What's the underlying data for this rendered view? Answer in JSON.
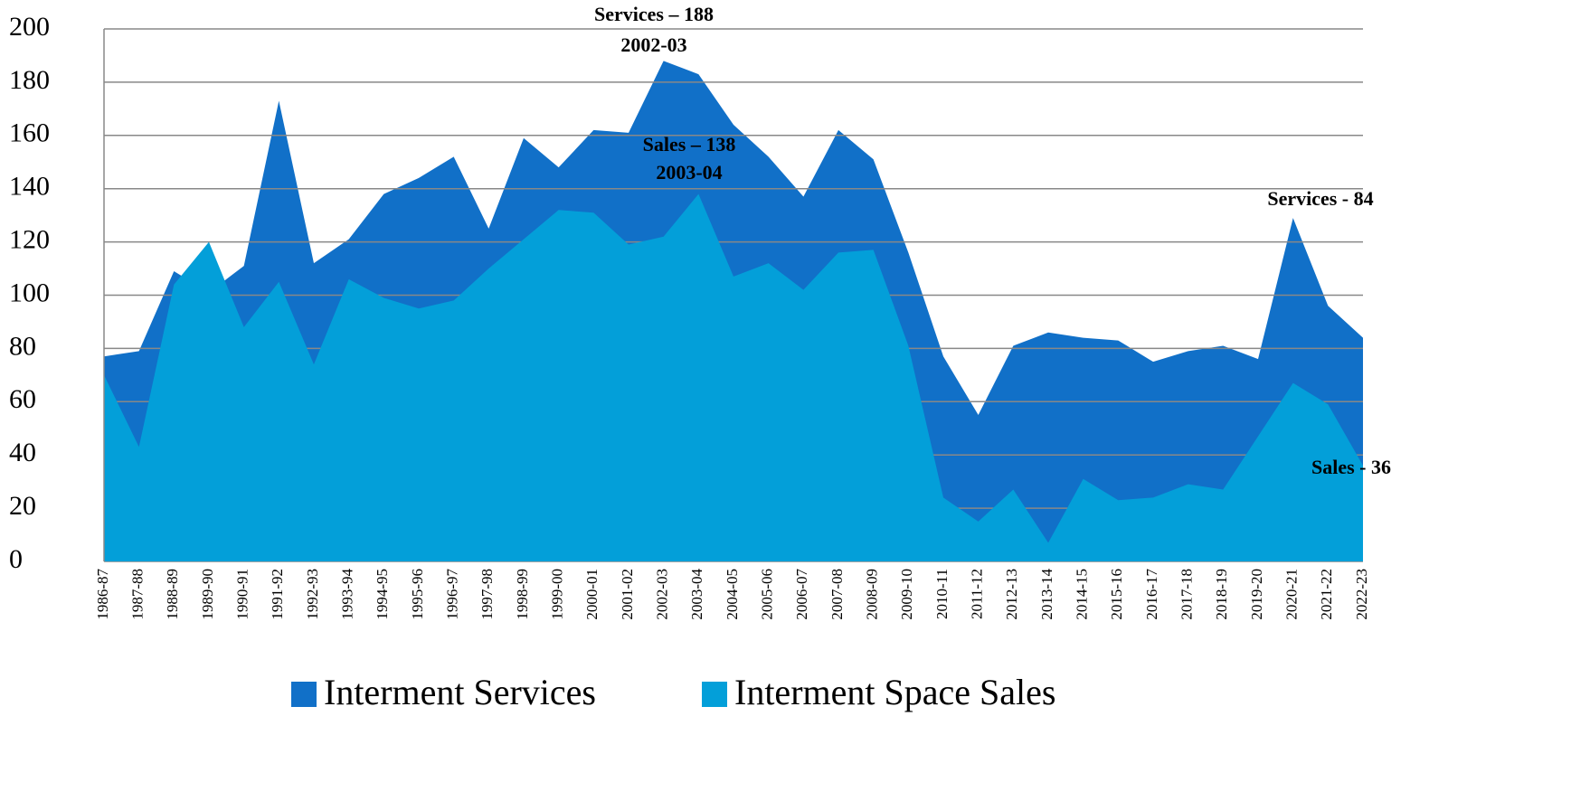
{
  "chart_data": {
    "type": "area",
    "categories": [
      "1986-87",
      "1987-88",
      "1988-89",
      "1989-90",
      "1990-91",
      "1991-92",
      "1992-93",
      "1993-94",
      "1994-95",
      "1995-96",
      "1996-97",
      "1997-98",
      "1998-99",
      "1999-00",
      "2000-01",
      "2001-02",
      "2002-03",
      "2003-04",
      "2004-05",
      "2005-06",
      "2006-07",
      "2007-08",
      "2008-09",
      "2009-10",
      "2010-11",
      "2011-12",
      "2012-13",
      "2013-14",
      "2014-15",
      "2015-16",
      "2016-17",
      "2017-18",
      "2018-19",
      "2019-20",
      "2020-21",
      "2021-22",
      "2022-23"
    ],
    "series": [
      {
        "name": "Interment Services",
        "color": "#1170c8",
        "values": [
          77,
          79,
          109,
          101,
          111,
          173,
          112,
          121,
          138,
          144,
          152,
          125,
          159,
          148,
          162,
          161,
          188,
          183,
          164,
          152,
          137,
          162,
          151,
          116,
          77,
          55,
          81,
          86,
          84,
          83,
          75,
          79,
          81,
          76,
          129,
          96,
          84
        ]
      },
      {
        "name": "Interment Space Sales",
        "color": "#039fd9",
        "values": [
          70,
          43,
          104,
          120,
          88,
          105,
          74,
          106,
          99,
          95,
          98,
          110,
          121,
          132,
          131,
          119,
          122,
          138,
          107,
          112,
          102,
          116,
          117,
          81,
          24,
          15,
          27,
          7,
          31,
          23,
          24,
          29,
          27,
          47,
          67,
          59,
          36
        ]
      }
    ],
    "ylim": [
      0,
      200
    ],
    "yticks": [
      0,
      20,
      40,
      60,
      80,
      100,
      120,
      140,
      160,
      180,
      200
    ],
    "grid": true,
    "legend": "bottom",
    "annotations": [
      "Services – 188",
      "2002-03",
      "Sales – 138",
      "2003-04",
      "Services - 84",
      "Sales - 36"
    ]
  }
}
